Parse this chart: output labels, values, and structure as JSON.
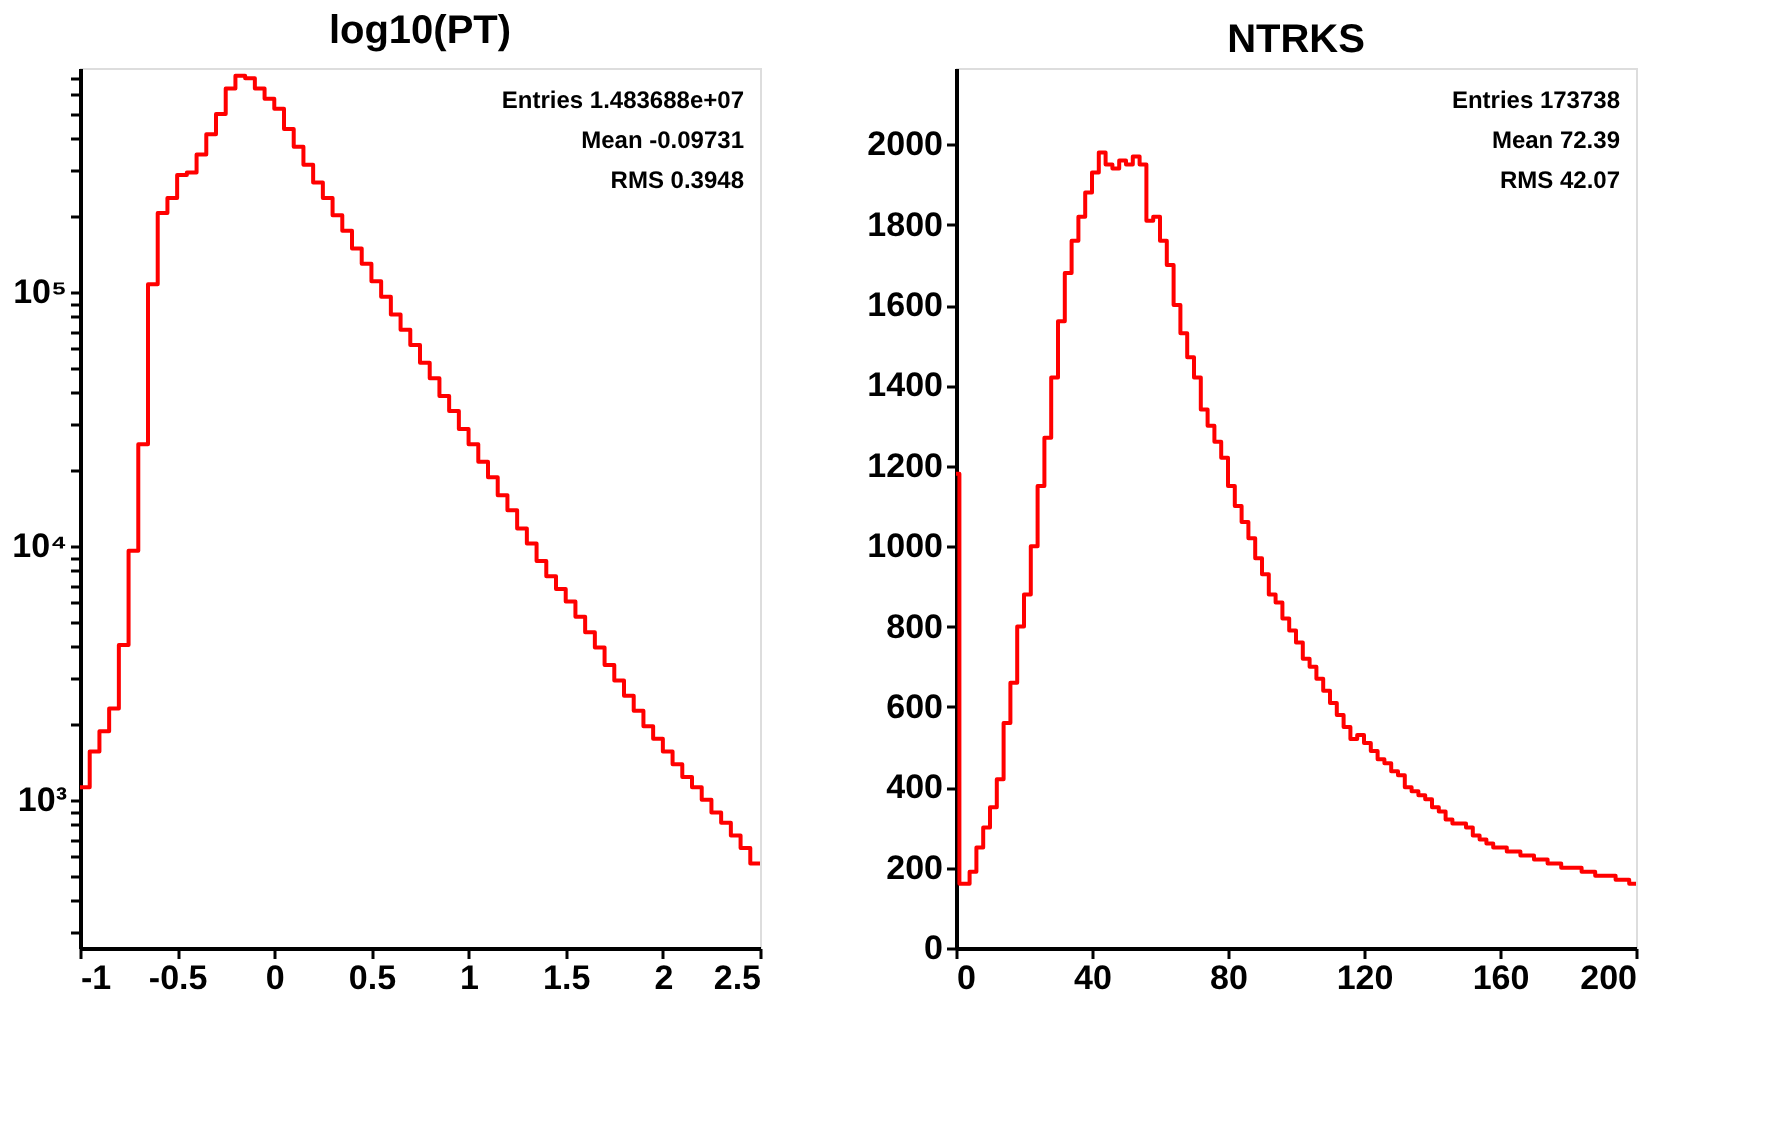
{
  "chart_data": [
    {
      "type": "histogram",
      "title": "log10(PT)",
      "annotations": [
        "Entries 1.483688e+07",
        "Mean  -0.09731",
        "RMS  0.3948"
      ],
      "color": "#ff0000",
      "log": true,
      "bins": [
        -1,
        -0.95,
        -0.9,
        -0.85,
        -0.8,
        -0.75,
        -0.7,
        -0.65,
        -0.6,
        -0.55,
        -0.5,
        -0.45,
        -0.4,
        -0.35,
        -0.3,
        -0.25,
        -0.2,
        -0.15,
        -0.1,
        -0.05,
        0,
        0.05,
        0.1,
        0.15,
        0.2,
        0.25,
        0.3,
        0.35,
        0.4,
        0.45,
        0.5,
        0.55,
        0.6,
        0.65,
        0.7,
        0.75,
        0.8,
        0.85,
        0.9,
        0.95,
        1,
        1.05,
        1.1,
        1.15,
        1.2,
        1.25,
        1.3,
        1.35,
        1.4,
        1.45,
        1.5,
        1.55,
        1.6,
        1.65,
        1.7,
        1.75,
        1.8,
        1.85,
        1.9,
        1.95,
        2,
        2.05,
        2.1,
        2.15,
        2.2,
        2.25,
        2.3,
        2.35,
        2.4,
        2.45,
        2.5
      ],
      "values": [
        1120,
        1550,
        1860,
        2290,
        4070,
        9550,
        25100,
        107000,
        204000,
        234000,
        288000,
        295000,
        347000,
        417000,
        501000,
        631000,
        708000,
        692000,
        631000,
        575000,
        525000,
        437000,
        372000,
        316000,
        269000,
        234000,
        200000,
        174000,
        148000,
        129000,
        110000,
        95500,
        81300,
        70800,
        61700,
        52500,
        45700,
        38900,
        33900,
        28800,
        25100,
        21400,
        18600,
        15800,
        13800,
        11700,
        10200,
        8710,
        7590,
        6760,
        6030,
        5250,
        4570,
        3980,
        3390,
        2950,
        2570,
        2240,
        1950,
        1740,
        1550,
        1380,
        1230,
        1120,
        1000,
        891,
        813,
        724,
        646,
        562
      ],
      "xlim": [
        -1,
        2.5
      ],
      "xticks": [
        -1,
        -0.5,
        0,
        0.5,
        1,
        1.5,
        2,
        2.5
      ],
      "ylim": [
        261,
        760000
      ],
      "yticks": [
        {
          "value": 300,
          "label": null
        },
        {
          "value": 400,
          "label": null
        },
        {
          "value": 500,
          "label": null
        },
        {
          "value": 600,
          "label": null
        },
        {
          "value": 700,
          "label": null
        },
        {
          "value": 800,
          "label": null
        },
        {
          "value": 900,
          "label": null
        },
        {
          "value": 1000,
          "label": "10³"
        },
        {
          "value": 2000,
          "label": null
        },
        {
          "value": 3000,
          "label": null
        },
        {
          "value": 4000,
          "label": null
        },
        {
          "value": 5000,
          "label": null
        },
        {
          "value": 6000,
          "label": null
        },
        {
          "value": 7000,
          "label": null
        },
        {
          "value": 8000,
          "label": null
        },
        {
          "value": 9000,
          "label": null
        },
        {
          "value": 10000,
          "label": "10⁴"
        },
        {
          "value": 20000,
          "label": null
        },
        {
          "value": 30000,
          "label": null
        },
        {
          "value": 40000,
          "label": null
        },
        {
          "value": 50000,
          "label": null
        },
        {
          "value": 60000,
          "label": null
        },
        {
          "value": 70000,
          "label": null
        },
        {
          "value": 80000,
          "label": null
        },
        {
          "value": 90000,
          "label": null
        },
        {
          "value": 100000,
          "label": "10⁵"
        },
        {
          "value": 200000,
          "label": null
        },
        {
          "value": 300000,
          "label": null
        },
        {
          "value": 400000,
          "label": null
        },
        {
          "value": 500000,
          "label": null
        },
        {
          "value": 600000,
          "label": null
        },
        {
          "value": 700000,
          "label": null
        }
      ]
    },
    {
      "type": "histogram",
      "title": "NTRKS",
      "annotations": [
        "Entries 173738",
        "Mean     72.39",
        "RMS      42.07"
      ],
      "color": "#ff0000",
      "bins": [
        0,
        1,
        2,
        4,
        6,
        8,
        10,
        12,
        14,
        16,
        18,
        20,
        22,
        24,
        26,
        28,
        30,
        32,
        34,
        36,
        38,
        40,
        42,
        44,
        46,
        48,
        50,
        52,
        54,
        56,
        58,
        60,
        62,
        64,
        66,
        68,
        70,
        72,
        74,
        76,
        78,
        80,
        82,
        84,
        86,
        88,
        90,
        92,
        94,
        96,
        98,
        100,
        102,
        104,
        106,
        108,
        110,
        112,
        114,
        116,
        118,
        120,
        122,
        124,
        126,
        128,
        130,
        132,
        134,
        136,
        138,
        140,
        142,
        144,
        146,
        148,
        150,
        152,
        154,
        156,
        158,
        160,
        162,
        164,
        166,
        168,
        170,
        172,
        174,
        176,
        178,
        180,
        182,
        184,
        186,
        188,
        190,
        192,
        194,
        196,
        198,
        200
      ],
      "values": [
        1180,
        160,
        160,
        190,
        250,
        300,
        350,
        420,
        560,
        660,
        800,
        880,
        1000,
        1150,
        1270,
        1420,
        1560,
        1680,
        1760,
        1820,
        1880,
        1930,
        1980,
        1950,
        1940,
        1960,
        1950,
        1970,
        1950,
        1810,
        1820,
        1760,
        1700,
        1600,
        1530,
        1470,
        1420,
        1340,
        1300,
        1260,
        1220,
        1150,
        1100,
        1060,
        1020,
        970,
        930,
        880,
        860,
        820,
        790,
        760,
        720,
        700,
        670,
        640,
        610,
        580,
        550,
        520,
        530,
        510,
        490,
        470,
        460,
        440,
        430,
        400,
        390,
        380,
        370,
        350,
        340,
        320,
        310,
        310,
        300,
        280,
        270,
        260,
        250,
        250,
        240,
        240,
        230,
        230,
        220,
        220,
        210,
        210,
        200,
        200,
        200,
        190,
        190,
        180,
        180,
        180,
        170,
        170,
        160
      ],
      "xlim": [
        0,
        200
      ],
      "xticks": [
        0,
        40,
        80,
        120,
        160,
        200
      ],
      "ylim": [
        0,
        2190
      ],
      "yticks": [
        0,
        200,
        400,
        600,
        800,
        1000,
        1200,
        1400,
        1600,
        1800,
        2000
      ]
    }
  ]
}
